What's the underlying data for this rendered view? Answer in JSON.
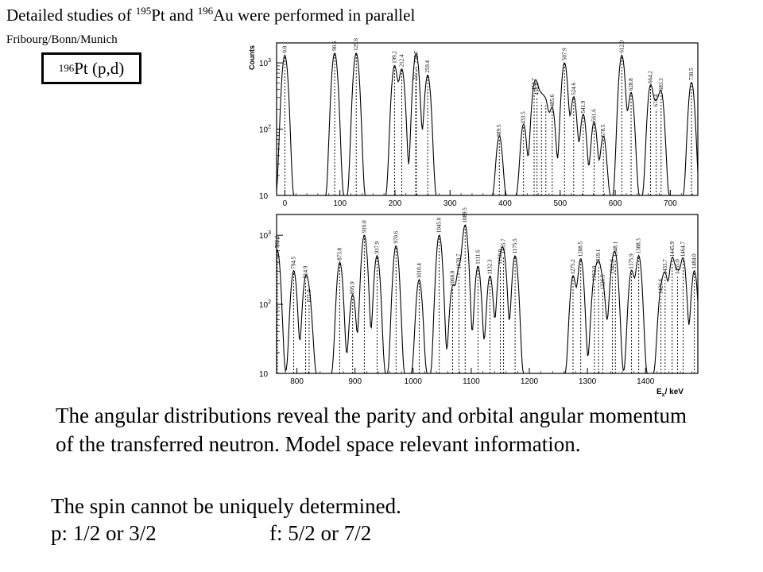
{
  "header": {
    "title_pre": "Detailed studies of ",
    "title_mass1": "195",
    "title_mid": "Pt and ",
    "title_mass2": "196",
    "title_post": "Au  were performed in parallel",
    "affiliation": "Fribourg/Bonn/Munich",
    "reaction_mass": "196",
    "reaction_label": "Pt (p,d)"
  },
  "text": {
    "paragraph": "The angular distributions reveal the parity and orbital angular momentum of the transferred neutron.   Model space relevant information.",
    "spin_line": "The spin cannot be uniquely determined.",
    "p_spin": "p: 1/2 or 3/2",
    "f_spin": "f: 5/2 or 7/2"
  },
  "chart_data": [
    {
      "type": "line",
      "ylabel": "Counts",
      "yscale": "log",
      "ylim": [
        10,
        2000
      ],
      "xlim": [
        -15,
        750
      ],
      "yticks": [
        {
          "v": 10,
          "label": "10"
        },
        {
          "v": 100,
          "label": "10",
          "sup": "2"
        },
        {
          "v": 1000,
          "label": "10",
          "sup": "3"
        }
      ],
      "xticks": [
        0,
        100,
        200,
        300,
        400,
        500,
        600,
        700
      ],
      "peaks": [
        {
          "x": 0,
          "y": 1300,
          "label": "0.0"
        },
        {
          "x": 90.5,
          "y": 1400,
          "label": "90.5"
        },
        {
          "x": 129.6,
          "y": 1400,
          "label": "129.6"
        },
        {
          "x": 199.2,
          "y": 900,
          "label": "199.2"
        },
        {
          "x": 212.4,
          "y": 800,
          "label": "212.4"
        },
        {
          "x": 237.7,
          "y": 500,
          "label": "237.7"
        },
        {
          "x": 238.7,
          "y": 900,
          "label": "238.7"
        },
        {
          "x": 259.4,
          "y": 650,
          "label": "259.4"
        },
        {
          "x": 389.5,
          "y": 70,
          "label": "389.5"
        },
        {
          "x": 433.5,
          "y": 110,
          "label": "433.5"
        },
        {
          "x": 452.7,
          "y": 350,
          "label": "452.7"
        },
        {
          "x": 458.0,
          "y": 300,
          "label": "458.0"
        },
        {
          "x": 466.0,
          "y": 250,
          "label": ""
        },
        {
          "x": 474.0,
          "y": 230,
          "label": ""
        },
        {
          "x": 485.6,
          "y": 200,
          "label": "485.6"
        },
        {
          "x": 507.9,
          "y": 1000,
          "label": "507.9"
        },
        {
          "x": 524.6,
          "y": 300,
          "label": "524.6"
        },
        {
          "x": 541.9,
          "y": 160,
          "label": "541.9"
        },
        {
          "x": 561.6,
          "y": 120,
          "label": "561.6"
        },
        {
          "x": 578.5,
          "y": 70,
          "label": "578.5"
        },
        {
          "x": 612.0,
          "y": 1300,
          "label": "612.0"
        },
        {
          "x": 628.8,
          "y": 350,
          "label": "628.8"
        },
        {
          "x": 664.2,
          "y": 450,
          "label": "664.2"
        },
        {
          "x": 674.4,
          "y": 200,
          "label": "674.4"
        },
        {
          "x": 683.3,
          "y": 350,
          "label": "683.3"
        },
        {
          "x": 738.5,
          "y": 500,
          "label": "738.5"
        }
      ]
    },
    {
      "type": "line",
      "xlabel": "E",
      "xlabel_sub": "x",
      "xlabel_unit": "/ keV",
      "yscale": "log",
      "ylim": [
        10,
        2000
      ],
      "xlim": [
        765,
        1490
      ],
      "yticks": [
        {
          "v": 10,
          "label": "10"
        },
        {
          "v": 100,
          "label": "10",
          "sup": "2"
        },
        {
          "v": 1000,
          "label": "10",
          "sup": "3"
        }
      ],
      "xticks": [
        800,
        900,
        1000,
        1100,
        1200,
        1300,
        1400
      ],
      "peaks": [
        {
          "x": 766.2,
          "y": 600,
          "label": "766.2"
        },
        {
          "x": 794.5,
          "y": 300,
          "label": "794.5"
        },
        {
          "x": 814.9,
          "y": 220,
          "label": "814.9"
        },
        {
          "x": 821.0,
          "y": 100,
          "label": "821.0"
        },
        {
          "x": 873.8,
          "y": 400,
          "label": "873.8"
        },
        {
          "x": 895.9,
          "y": 130,
          "label": "895.9"
        },
        {
          "x": 916.0,
          "y": 1000,
          "label": "916.0"
        },
        {
          "x": 937.9,
          "y": 500,
          "label": "937.9"
        },
        {
          "x": 970.6,
          "y": 700,
          "label": "970.6"
        },
        {
          "x": 1010.4,
          "y": 220,
          "label": "1010.4"
        },
        {
          "x": 1045.0,
          "y": 1000,
          "label": "1045.0"
        },
        {
          "x": 1068.0,
          "y": 170,
          "label": "1068.0"
        },
        {
          "x": 1078.7,
          "y": 300,
          "label": "1078.7"
        },
        {
          "x": 1089.5,
          "y": 1400,
          "label": "1089.5"
        },
        {
          "x": 1111.6,
          "y": 350,
          "label": "1111.6"
        },
        {
          "x": 1132.3,
          "y": 250,
          "label": "1132.3"
        },
        {
          "x": 1150.0,
          "y": 350,
          "label": "1150.0"
        },
        {
          "x": 1155.7,
          "y": 500,
          "label": "1155.7"
        },
        {
          "x": 1175.5,
          "y": 500,
          "label": "1175.5"
        },
        {
          "x": 1275.2,
          "y": 250,
          "label": "1275.2"
        },
        {
          "x": 1288.5,
          "y": 450,
          "label": "1288.5"
        },
        {
          "x": 1312.0,
          "y": 200,
          "label": "1312.0"
        },
        {
          "x": 1319.1,
          "y": 350,
          "label": "1319.1"
        },
        {
          "x": 1326.5,
          "y": 150,
          "label": "1326.5"
        },
        {
          "x": 1342.8,
          "y": 250,
          "label": "1342.8"
        },
        {
          "x": 1348.1,
          "y": 450,
          "label": "1348.1"
        },
        {
          "x": 1375.9,
          "y": 300,
          "label": "1375.9"
        },
        {
          "x": 1388.3,
          "y": 500,
          "label": "1388.3"
        },
        {
          "x": 1426.6,
          "y": 130,
          "label": "1426.6"
        },
        {
          "x": 1433.7,
          "y": 250,
          "label": "1433.7"
        },
        {
          "x": 1445.9,
          "y": 450,
          "label": "1445.9"
        },
        {
          "x": 1455.0,
          "y": 250,
          "label": "1455.0"
        },
        {
          "x": 1464.7,
          "y": 450,
          "label": "1464.7"
        },
        {
          "x": 1484.0,
          "y": 300,
          "label": "1484.0"
        }
      ]
    }
  ]
}
